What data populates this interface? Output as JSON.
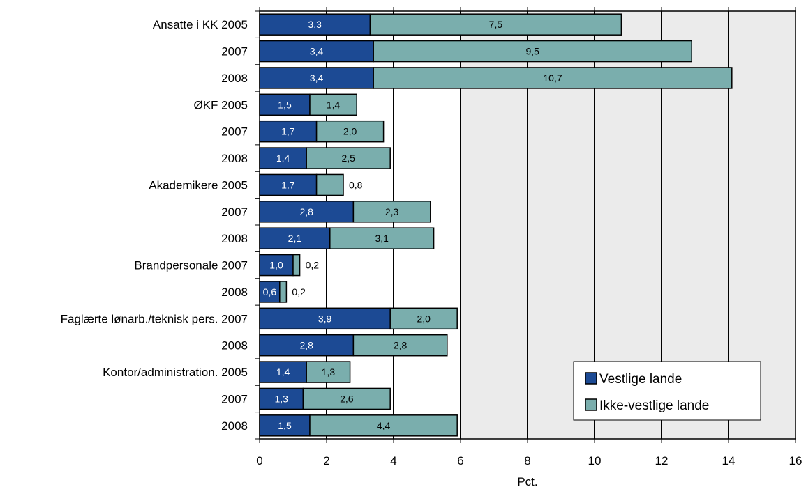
{
  "chart_data": {
    "type": "bar",
    "orientation": "horizontal",
    "stacked": true,
    "categories": [
      "Ansatte i KK 2005",
      "2007",
      "2008",
      "ØKF 2005",
      "2007",
      "2008",
      "Akademikere 2005",
      "2007",
      "2008",
      "Brandpersonale 2007",
      "2008",
      "Faglærte lønarb./teknisk pers.  2007",
      "2008",
      "Kontor/administration. 2005",
      "2007",
      "2008"
    ],
    "series": [
      {
        "name": "Vestlige lande",
        "values": [
          3.3,
          3.4,
          3.4,
          1.5,
          1.7,
          1.4,
          1.7,
          2.8,
          2.1,
          1.0,
          0.6,
          3.9,
          2.8,
          1.4,
          1.3,
          1.5
        ],
        "labels": [
          "3,3",
          "3,4",
          "3,4",
          "1,5",
          "1,7",
          "1,4",
          "1,7",
          "2,8",
          "2,1",
          "1,0",
          "0,6",
          "3,9",
          "2,8",
          "1,4",
          "1,3",
          "1,5"
        ],
        "color": "#1c4a94"
      },
      {
        "name": "Ikke-vestlige lande",
        "values": [
          7.5,
          9.5,
          10.7,
          1.4,
          2.0,
          2.5,
          0.8,
          2.3,
          3.1,
          0.2,
          0.2,
          2.0,
          2.8,
          1.3,
          2.6,
          4.4
        ],
        "labels": [
          "7,5",
          "9,5",
          "10,7",
          "1,4",
          "2,0",
          "2,5",
          "0,8",
          "2,3",
          "3,1",
          "0,2",
          "0,2",
          "2,0",
          "2,8",
          "1,3",
          "2,6",
          "4,4"
        ],
        "color": "#7aaead"
      }
    ],
    "xlabel": "Pct.",
    "xlim": [
      0,
      16
    ],
    "xticks": [
      0,
      2,
      4,
      6,
      8,
      10,
      12,
      14,
      16
    ],
    "grid": "vertical",
    "legend_position": "bottom-right-inside",
    "colors": {
      "plot_background": "#ebebeb",
      "gridline": "#000000",
      "bar_outline": "#000000"
    }
  }
}
